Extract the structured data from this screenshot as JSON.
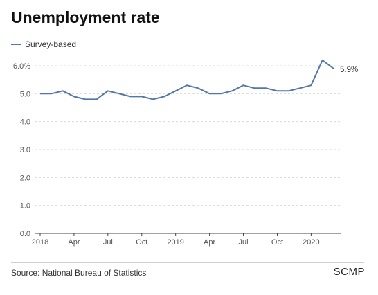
{
  "header": {
    "title": "Unemployment rate"
  },
  "footer": {
    "source": "Source: National Bureau of Statistics",
    "brand": "SCMP"
  },
  "colors": {
    "series": "#5476a8",
    "grid": "#d9d9d9",
    "axis": "#555555"
  },
  "chart_data": {
    "type": "line",
    "title": "Unemployment rate",
    "xlabel": "",
    "ylabel": "",
    "ylim": [
      0,
      6.0
    ],
    "yticks": [
      "0.0",
      "1.0",
      "2.0",
      "3.0",
      "4.0",
      "5.0",
      "6.0%"
    ],
    "ytick_values": [
      0,
      1,
      2,
      3,
      4,
      5,
      6
    ],
    "xticks": [
      {
        "label": "2018",
        "x": "2018-01"
      },
      {
        "label": "Apr",
        "x": "2018-04"
      },
      {
        "label": "Jul",
        "x": "2018-07"
      },
      {
        "label": "Oct",
        "x": "2018-10"
      },
      {
        "label": "2019",
        "x": "2019-01"
      },
      {
        "label": "Apr",
        "x": "2019-04"
      },
      {
        "label": "Jul",
        "x": "2019-07"
      },
      {
        "label": "Oct",
        "x": "2019-10"
      },
      {
        "label": "2020",
        "x": "2020-01"
      }
    ],
    "legend": "top-left",
    "grid": true,
    "series": [
      {
        "name": "Survey-based",
        "x": [
          "2018-01",
          "2018-02",
          "2018-03",
          "2018-04",
          "2018-05",
          "2018-06",
          "2018-07",
          "2018-08",
          "2018-09",
          "2018-10",
          "2018-11",
          "2018-12",
          "2019-01",
          "2019-02",
          "2019-03",
          "2019-04",
          "2019-05",
          "2019-06",
          "2019-07",
          "2019-08",
          "2019-09",
          "2019-10",
          "2019-11",
          "2019-12",
          "2020-01",
          "2020-02",
          "2020-03"
        ],
        "values": [
          5.0,
          5.0,
          5.1,
          4.9,
          4.8,
          4.8,
          5.1,
          5.0,
          4.9,
          4.9,
          4.8,
          4.9,
          5.1,
          5.3,
          5.2,
          5.0,
          5.0,
          5.1,
          5.3,
          5.2,
          5.2,
          5.1,
          5.1,
          5.2,
          5.3,
          6.2,
          5.9
        ],
        "end_label": "5.9%"
      }
    ]
  }
}
